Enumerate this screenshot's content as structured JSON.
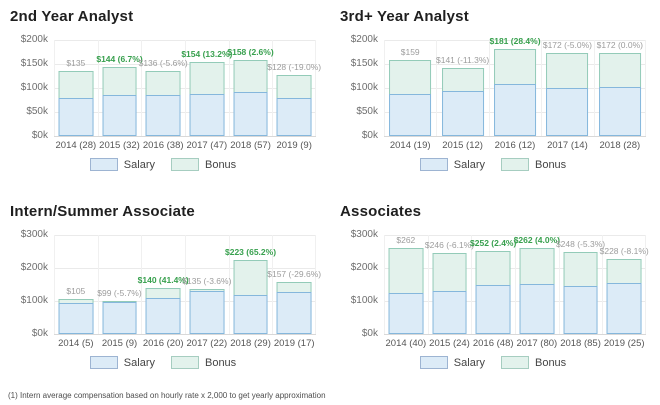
{
  "page": {
    "footnote": "(1) Intern average compensation based on hourly rate x 2,000 to get yearly approximation"
  },
  "colors": {
    "salary_fill": "#dcebf7",
    "salary_border": "#85b7dc",
    "bonus_fill": "#e3f2ec",
    "bonus_border": "#93cbb8",
    "positive_label": "#38a04e",
    "neutral_label": "#9c9c9c"
  },
  "chart_data": [
    {
      "type": "bar",
      "stacked": true,
      "title": "2nd Year Analyst",
      "xlabel": "",
      "ylabel": "",
      "ylim_k": [
        0,
        200
      ],
      "grid": true,
      "legend_position": "bottom",
      "yticks": [
        {
          "value_k": 0,
          "label": "$0k"
        },
        {
          "value_k": 50,
          "label": "$50k"
        },
        {
          "value_k": 100,
          "label": "$100k"
        },
        {
          "value_k": 150,
          "label": "$150k"
        },
        {
          "value_k": 200,
          "label": "$200k"
        }
      ],
      "categories": [
        "2014 (28)",
        "2015 (32)",
        "2016 (38)",
        "2017 (47)",
        "2018 (57)",
        "2019 (9)"
      ],
      "series": [
        {
          "name": "Salary",
          "values_k": [
            79,
            86,
            86,
            88,
            92,
            80
          ]
        },
        {
          "name": "Bonus",
          "values_k": [
            56,
            58,
            50,
            66,
            66,
            48
          ]
        }
      ],
      "totals_k": [
        135,
        144,
        136,
        154,
        158,
        128
      ],
      "bar_labels": [
        {
          "text": "$135",
          "positive": false
        },
        {
          "text": "$144 (6.7%)",
          "positive": true
        },
        {
          "text": "$136 (-5.6%)",
          "positive": false
        },
        {
          "text": "$154 (13.2%)",
          "positive": true
        },
        {
          "text": "$158 (2.6%)",
          "positive": true
        },
        {
          "text": "$128 (-19.0%)",
          "positive": false
        }
      ],
      "legend": [
        "Salary",
        "Bonus"
      ]
    },
    {
      "type": "bar",
      "stacked": true,
      "title": "3rd+ Year Analyst",
      "xlabel": "",
      "ylabel": "",
      "ylim_k": [
        0,
        200
      ],
      "grid": true,
      "legend_position": "bottom",
      "yticks": [
        {
          "value_k": 0,
          "label": "$0k"
        },
        {
          "value_k": 50,
          "label": "$50k"
        },
        {
          "value_k": 100,
          "label": "$100k"
        },
        {
          "value_k": 150,
          "label": "$150k"
        },
        {
          "value_k": 200,
          "label": "$200k"
        }
      ],
      "categories": [
        "2014 (19)",
        "2015 (12)",
        "2016 (12)",
        "2017 (14)",
        "2018 (28)"
      ],
      "series": [
        {
          "name": "Salary",
          "values_k": [
            88,
            94,
            109,
            100,
            102
          ]
        },
        {
          "name": "Bonus",
          "values_k": [
            71,
            47,
            72,
            72,
            70
          ]
        }
      ],
      "totals_k": [
        159,
        141,
        181,
        172,
        172
      ],
      "bar_labels": [
        {
          "text": "$159",
          "positive": false
        },
        {
          "text": "$141 (-11.3%)",
          "positive": false
        },
        {
          "text": "$181 (28.4%)",
          "positive": true
        },
        {
          "text": "$172 (-5.0%)",
          "positive": false
        },
        {
          "text": "$172 (0.0%)",
          "positive": false
        }
      ],
      "legend": [
        "Salary",
        "Bonus"
      ]
    },
    {
      "type": "bar",
      "stacked": true,
      "title": "Intern/Summer Associate",
      "xlabel": "",
      "ylabel": "",
      "ylim_k": [
        0,
        300
      ],
      "grid": true,
      "legend_position": "bottom",
      "yticks": [
        {
          "value_k": 0,
          "label": "$0k"
        },
        {
          "value_k": 100,
          "label": "$100k"
        },
        {
          "value_k": 200,
          "label": "$200k"
        },
        {
          "value_k": 300,
          "label": "$300k"
        }
      ],
      "categories": [
        "2014 (5)",
        "2015 (9)",
        "2016 (20)",
        "2017 (22)",
        "2018 (29)",
        "2019 (17)"
      ],
      "series": [
        {
          "name": "Salary",
          "values_k": [
            95,
            97,
            109,
            130,
            118,
            127
          ]
        },
        {
          "name": "Bonus",
          "values_k": [
            10,
            2,
            31,
            5,
            105,
            30
          ]
        }
      ],
      "totals_k": [
        105,
        99,
        140,
        135,
        223,
        157
      ],
      "bar_labels": [
        {
          "text": "$105",
          "positive": false
        },
        {
          "text": "$99 (-5.7%)",
          "positive": false
        },
        {
          "text": "$140 (41.4%)",
          "positive": true
        },
        {
          "text": "$135 (-3.6%)",
          "positive": false
        },
        {
          "text": "$223 (65.2%)",
          "positive": true
        },
        {
          "text": "$157 (-29.6%)",
          "positive": false
        }
      ],
      "legend": [
        "Salary",
        "Bonus"
      ]
    },
    {
      "type": "bar",
      "stacked": true,
      "title": "Associates",
      "xlabel": "",
      "ylabel": "",
      "ylim_k": [
        0,
        300
      ],
      "grid": true,
      "legend_position": "bottom",
      "yticks": [
        {
          "value_k": 0,
          "label": "$0k"
        },
        {
          "value_k": 100,
          "label": "$100k"
        },
        {
          "value_k": 200,
          "label": "$200k"
        },
        {
          "value_k": 300,
          "label": "$300k"
        }
      ],
      "categories": [
        "2014 (40)",
        "2015 (24)",
        "2016 (48)",
        "2017 (80)",
        "2018 (85)",
        "2019 (25)"
      ],
      "series": [
        {
          "name": "Salary",
          "values_k": [
            125,
            130,
            148,
            152,
            146,
            155
          ]
        },
        {
          "name": "Bonus",
          "values_k": [
            137,
            116,
            104,
            110,
            102,
            73
          ]
        }
      ],
      "totals_k": [
        262,
        246,
        252,
        262,
        248,
        228
      ],
      "bar_labels": [
        {
          "text": "$262",
          "positive": false
        },
        {
          "text": "$246 (-6.1%)",
          "positive": false
        },
        {
          "text": "$252 (2.4%)",
          "positive": true
        },
        {
          "text": "$262 (4.0%)",
          "positive": true
        },
        {
          "text": "$248 (-5.3%)",
          "positive": false
        },
        {
          "text": "$228 (-8.1%)",
          "positive": false
        }
      ],
      "legend": [
        "Salary",
        "Bonus"
      ]
    }
  ]
}
